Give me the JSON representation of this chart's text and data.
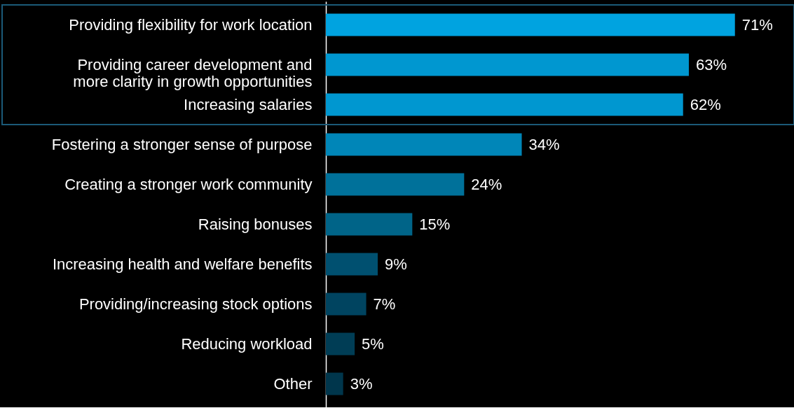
{
  "chart_data": {
    "type": "bar",
    "orientation": "horizontal",
    "categories": [
      "Providing flexibility for work location",
      "Providing career development and\nmore clarity in growth opportunities",
      "Increasing salaries",
      "Fostering a stronger sense of purpose",
      "Creating a stronger work community",
      "Raising bonuses",
      "Increasing health and welfare benefits",
      "Providing/increasing stock options",
      "Reducing workload",
      "Other"
    ],
    "values": [
      71,
      63,
      62,
      34,
      24,
      15,
      9,
      7,
      5,
      3
    ],
    "value_labels": [
      "71%",
      "63%",
      "62%",
      "34%",
      "24%",
      "15%",
      "9%",
      "7%",
      "5%",
      "3%"
    ],
    "colors": [
      "#00a3e0",
      "#0097d0",
      "#0097d0",
      "#0086b8",
      "#00719a",
      "#006488",
      "#005070",
      "#004460",
      "#003d55",
      "#00364c"
    ],
    "grid": false
  }
}
